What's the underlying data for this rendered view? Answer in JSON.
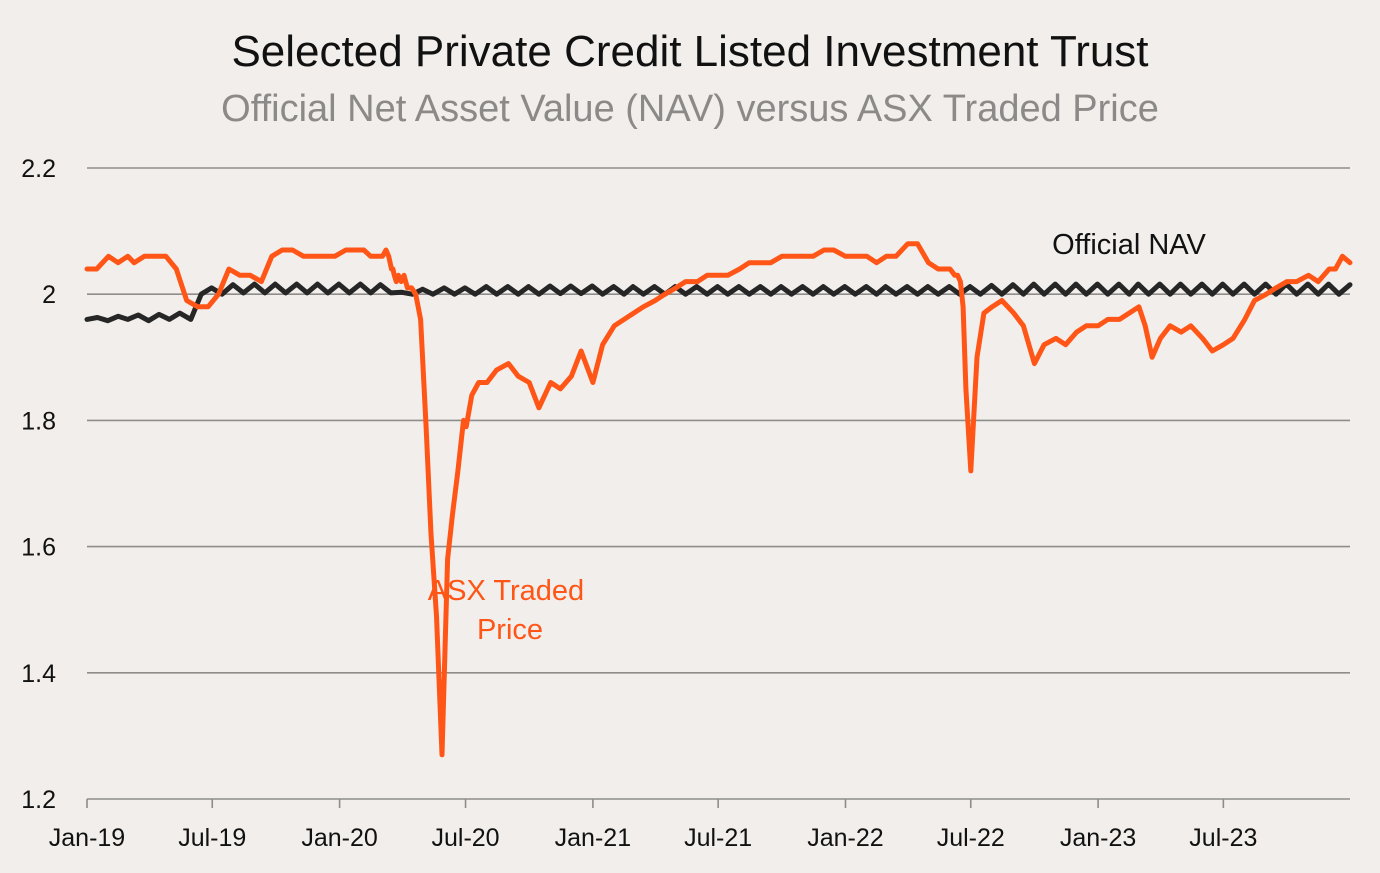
{
  "chart_data": {
    "type": "line",
    "title": "Selected Private Credit Listed Investment Trust",
    "subtitle": "Official Net Asset Value (NAV) versus ASX Traded Price",
    "xlabel": "",
    "ylabel": "",
    "ylim": [
      1.2,
      2.2
    ],
    "yticks": [
      1.2,
      1.4,
      1.6,
      1.8,
      2.0,
      2.2
    ],
    "ytick_labels": [
      "1.2",
      "1.4",
      "1.6",
      "1.8",
      "2",
      "2.2"
    ],
    "xlim": [
      "2019-01-01",
      "2023-12-31"
    ],
    "xticks": [
      "2019-01-01",
      "2019-07-01",
      "2020-01-01",
      "2020-07-01",
      "2021-01-01",
      "2021-07-01",
      "2022-01-01",
      "2022-07-01",
      "2023-01-01",
      "2023-07-01"
    ],
    "xtick_labels": [
      "Jan-19",
      "Jul-19",
      "Jan-20",
      "Jul-20",
      "Jan-21",
      "Jul-21",
      "Jan-22",
      "Jul-22",
      "Jan-23",
      "Jul-23"
    ],
    "grid": true,
    "series": [
      {
        "name": "Official NAV",
        "color": "#262626",
        "x": [
          "2019-01-01",
          "2019-01-16",
          "2019-01-31",
          "2019-02-15",
          "2019-03-01",
          "2019-03-16",
          "2019-03-31",
          "2019-04-15",
          "2019-04-30",
          "2019-05-15",
          "2019-05-31",
          "2019-06-15",
          "2019-06-30",
          "2019-07-15",
          "2019-07-31",
          "2019-08-15",
          "2019-08-31",
          "2019-09-15",
          "2019-09-30",
          "2019-10-15",
          "2019-10-31",
          "2019-11-15",
          "2019-11-30",
          "2019-12-15",
          "2019-12-31",
          "2020-01-15",
          "2020-01-31",
          "2020-02-15",
          "2020-02-29",
          "2020-03-15",
          "2020-03-31",
          "2020-04-15",
          "2020-04-30",
          "2020-05-15",
          "2020-05-31",
          "2020-06-15",
          "2020-06-30",
          "2020-07-15",
          "2020-07-31",
          "2020-08-15",
          "2020-08-31",
          "2020-09-15",
          "2020-09-30",
          "2020-10-15",
          "2020-10-31",
          "2020-11-15",
          "2020-11-30",
          "2020-12-15",
          "2020-12-31",
          "2021-01-15",
          "2021-01-31",
          "2021-02-15",
          "2021-02-28",
          "2021-03-15",
          "2021-03-31",
          "2021-04-15",
          "2021-04-30",
          "2021-05-15",
          "2021-05-31",
          "2021-06-15",
          "2021-06-30",
          "2021-07-15",
          "2021-07-31",
          "2021-08-15",
          "2021-08-31",
          "2021-09-15",
          "2021-09-30",
          "2021-10-15",
          "2021-10-31",
          "2021-11-15",
          "2021-11-30",
          "2021-12-15",
          "2021-12-31",
          "2022-01-15",
          "2022-01-31",
          "2022-02-15",
          "2022-02-28",
          "2022-03-15",
          "2022-03-31",
          "2022-04-15",
          "2022-04-30",
          "2022-05-15",
          "2022-05-31",
          "2022-06-15",
          "2022-06-30",
          "2022-07-15",
          "2022-07-31",
          "2022-08-15",
          "2022-08-31",
          "2022-09-15",
          "2022-09-30",
          "2022-10-15",
          "2022-10-31",
          "2022-11-15",
          "2022-11-30",
          "2022-12-15",
          "2022-12-31",
          "2023-01-15",
          "2023-01-31",
          "2023-02-15",
          "2023-02-28",
          "2023-03-15",
          "2023-03-31",
          "2023-04-15",
          "2023-04-30",
          "2023-05-15",
          "2023-05-31",
          "2023-06-15",
          "2023-06-30",
          "2023-07-15",
          "2023-07-31",
          "2023-08-15",
          "2023-08-31",
          "2023-09-15",
          "2023-09-30",
          "2023-10-15",
          "2023-10-31",
          "2023-11-15",
          "2023-11-30",
          "2023-12-15",
          "2023-12-31"
        ],
        "y": [
          1.96,
          1.963,
          1.958,
          1.965,
          1.96,
          1.967,
          1.958,
          1.968,
          1.96,
          1.97,
          1.96,
          2.0,
          2.01,
          2.0,
          2.015,
          2.002,
          2.016,
          2.002,
          2.016,
          2.002,
          2.016,
          2.002,
          2.016,
          2.002,
          2.016,
          2.002,
          2.016,
          2.002,
          2.015,
          2.002,
          2.003,
          2.0,
          2.008,
          2.0,
          2.01,
          2.0,
          2.01,
          2.0,
          2.012,
          2.0,
          2.012,
          2.0,
          2.012,
          2.0,
          2.013,
          2.001,
          2.013,
          2.001,
          2.013,
          2.0,
          2.012,
          2.0,
          2.012,
          2.0,
          2.012,
          2.0,
          2.012,
          2.0,
          2.012,
          2.0,
          2.012,
          2.0,
          2.012,
          2.0,
          2.012,
          2.0,
          2.012,
          2.0,
          2.012,
          2.0,
          2.012,
          2.0,
          2.012,
          2.0,
          2.012,
          2.0,
          2.012,
          2.0,
          2.012,
          2.0,
          2.012,
          2.0,
          2.012,
          2.0,
          2.012,
          2.0,
          2.014,
          2.0,
          2.015,
          2.0,
          2.016,
          2.0,
          2.016,
          2.0,
          2.016,
          2.0,
          2.016,
          2.0,
          2.016,
          2.0,
          2.016,
          2.0,
          2.016,
          2.0,
          2.016,
          2.0,
          2.016,
          2.0,
          2.016,
          2.0,
          2.016,
          2.0,
          2.016,
          2.0,
          2.016,
          2.0,
          2.016,
          2.0,
          2.016,
          2.0,
          2.015
        ]
      },
      {
        "name": "ASX Traded Price",
        "color": "#ff5617",
        "x": [
          "2019-01-01",
          "2019-01-15",
          "2019-02-01",
          "2019-02-15",
          "2019-03-01",
          "2019-03-10",
          "2019-03-25",
          "2019-04-10",
          "2019-04-25",
          "2019-05-10",
          "2019-05-25",
          "2019-06-10",
          "2019-06-25",
          "2019-07-10",
          "2019-07-25",
          "2019-08-10",
          "2019-08-25",
          "2019-09-10",
          "2019-09-25",
          "2019-10-10",
          "2019-10-25",
          "2019-11-10",
          "2019-11-25",
          "2019-12-10",
          "2019-12-25",
          "2020-01-10",
          "2020-01-25",
          "2020-02-05",
          "2020-02-15",
          "2020-02-25",
          "2020-03-03",
          "2020-03-08",
          "2020-03-12",
          "2020-03-16",
          "2020-03-18",
          "2020-03-20",
          "2020-03-23",
          "2020-03-26",
          "2020-03-30",
          "2020-04-03",
          "2020-04-08",
          "2020-04-14",
          "2020-04-20",
          "2020-04-27",
          "2020-05-05",
          "2020-05-12",
          "2020-05-20",
          "2020-05-28",
          "2020-06-05",
          "2020-06-12",
          "2020-06-20",
          "2020-06-28",
          "2020-07-02",
          "2020-07-10",
          "2020-07-20",
          "2020-08-01",
          "2020-08-15",
          "2020-09-01",
          "2020-09-15",
          "2020-10-01",
          "2020-10-15",
          "2020-11-01",
          "2020-11-15",
          "2020-12-01",
          "2020-12-15",
          "2021-01-01",
          "2021-01-15",
          "2021-02-01",
          "2021-02-15",
          "2021-03-01",
          "2021-03-15",
          "2021-04-01",
          "2021-04-15",
          "2021-05-01",
          "2021-05-15",
          "2021-06-01",
          "2021-06-15",
          "2021-07-01",
          "2021-07-15",
          "2021-08-01",
          "2021-08-15",
          "2021-09-01",
          "2021-09-15",
          "2021-10-01",
          "2021-10-15",
          "2021-11-01",
          "2021-11-15",
          "2021-12-01",
          "2021-12-15",
          "2022-01-01",
          "2022-01-10",
          "2022-01-20",
          "2022-02-01",
          "2022-02-15",
          "2022-03-01",
          "2022-03-15",
          "2022-04-01",
          "2022-04-15",
          "2022-05-01",
          "2022-05-15",
          "2022-06-01",
          "2022-06-08",
          "2022-06-12",
          "2022-06-16",
          "2022-06-20",
          "2022-06-24",
          "2022-07-01",
          "2022-07-10",
          "2022-07-20",
          "2022-08-01",
          "2022-08-15",
          "2022-09-01",
          "2022-09-15",
          "2022-10-01",
          "2022-10-15",
          "2022-11-01",
          "2022-11-15",
          "2022-12-01",
          "2022-12-15",
          "2023-01-01",
          "2023-01-15",
          "2023-02-01",
          "2023-02-15",
          "2023-03-01",
          "2023-03-10",
          "2023-03-20",
          "2023-04-01",
          "2023-04-15",
          "2023-05-01",
          "2023-05-15",
          "2023-06-01",
          "2023-06-15",
          "2023-07-01",
          "2023-07-15",
          "2023-08-01",
          "2023-08-15",
          "2023-09-01",
          "2023-09-15",
          "2023-10-01",
          "2023-10-15",
          "2023-11-01",
          "2023-11-15",
          "2023-12-01",
          "2023-12-10",
          "2023-12-20",
          "2023-12-31"
        ],
        "y": [
          2.04,
          2.04,
          2.06,
          2.05,
          2.06,
          2.05,
          2.06,
          2.06,
          2.06,
          2.04,
          1.99,
          1.98,
          1.98,
          2.0,
          2.04,
          2.03,
          2.03,
          2.02,
          2.06,
          2.07,
          2.07,
          2.06,
          2.06,
          2.06,
          2.06,
          2.07,
          2.07,
          2.07,
          2.06,
          2.06,
          2.06,
          2.07,
          2.06,
          2.04,
          2.04,
          2.03,
          2.02,
          2.03,
          2.02,
          2.03,
          2.01,
          2.01,
          2.0,
          1.96,
          1.79,
          1.62,
          1.49,
          1.27,
          1.58,
          1.65,
          1.72,
          1.8,
          1.79,
          1.84,
          1.86,
          1.86,
          1.88,
          1.89,
          1.87,
          1.86,
          1.82,
          1.86,
          1.85,
          1.87,
          1.91,
          1.86,
          1.92,
          1.95,
          1.96,
          1.97,
          1.98,
          1.99,
          2.0,
          2.01,
          2.02,
          2.02,
          2.03,
          2.03,
          2.03,
          2.04,
          2.05,
          2.05,
          2.05,
          2.06,
          2.06,
          2.06,
          2.06,
          2.07,
          2.07,
          2.06,
          2.06,
          2.06,
          2.06,
          2.05,
          2.06,
          2.06,
          2.08,
          2.08,
          2.05,
          2.04,
          2.04,
          2.03,
          2.03,
          2.02,
          1.98,
          1.85,
          1.72,
          1.9,
          1.97,
          1.98,
          1.99,
          1.97,
          1.95,
          1.89,
          1.92,
          1.93,
          1.92,
          1.94,
          1.95,
          1.95,
          1.96,
          1.96,
          1.97,
          1.98,
          1.95,
          1.9,
          1.93,
          1.95,
          1.94,
          1.95,
          1.93,
          1.91,
          1.92,
          1.93,
          1.96,
          1.99,
          2.0,
          2.01,
          2.02,
          2.02,
          2.03,
          2.02,
          2.04,
          2.04,
          2.06,
          2.05
        ]
      }
    ],
    "annotations": [
      {
        "lines": [
          "Official NAV"
        ],
        "color": "#111111"
      },
      {
        "lines": [
          "ASX Traded",
          "Price"
        ],
        "color": "#ff5617"
      }
    ]
  }
}
